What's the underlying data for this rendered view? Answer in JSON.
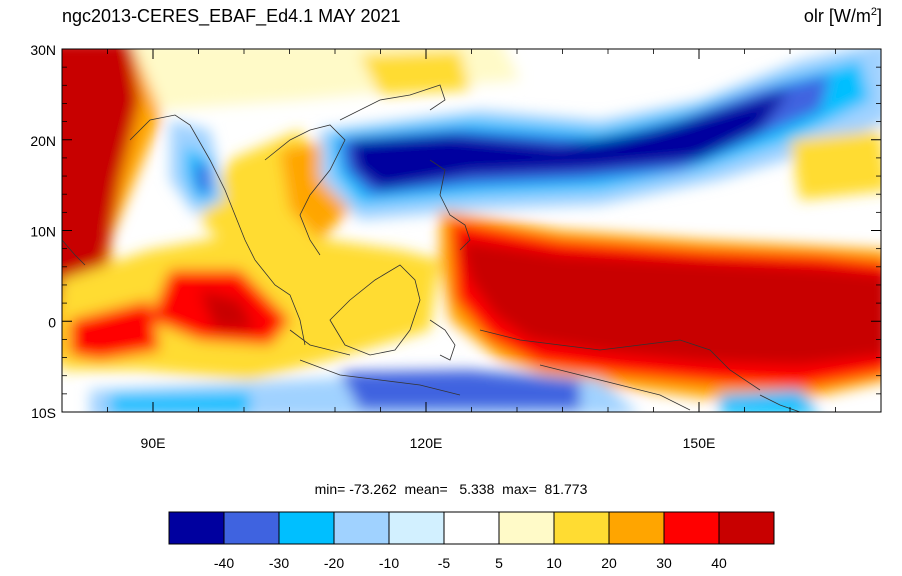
{
  "title": {
    "left": "ngc2013-CERES_EBAF_Ed4.1  MAY 2021",
    "right_var": "olr",
    "right_units_pre": "[W/m",
    "right_units_sup": "2",
    "right_units_post": "]"
  },
  "map": {
    "lon_range": [
      80,
      170
    ],
    "lat_range": [
      -10,
      30
    ],
    "lat_ticks": [
      {
        "value": 30,
        "label": "30N"
      },
      {
        "value": 20,
        "label": "20N"
      },
      {
        "value": 10,
        "label": "10N"
      },
      {
        "value": 0,
        "label": "0"
      },
      {
        "value": -10,
        "label": "10S"
      }
    ],
    "lon_ticks": [
      {
        "value": 90,
        "label": "90E"
      },
      {
        "value": 120,
        "label": "120E"
      },
      {
        "value": 150,
        "label": "150E"
      }
    ]
  },
  "stats": {
    "text": "min= -73.262  mean=   5.338  max=  81.773"
  },
  "colorbar": {
    "colors": [
      "#00009f",
      "#3f63e0",
      "#00bfff",
      "#a0d2ff",
      "#d2f0ff",
      "#ffffff",
      "#fffac8",
      "#ffdc32",
      "#ffa500",
      "#ff0000",
      "#c80000"
    ],
    "labels": [
      "-40",
      "-30",
      "-20",
      "-10",
      "-5",
      "5",
      "10",
      "20",
      "30",
      "40"
    ]
  }
}
